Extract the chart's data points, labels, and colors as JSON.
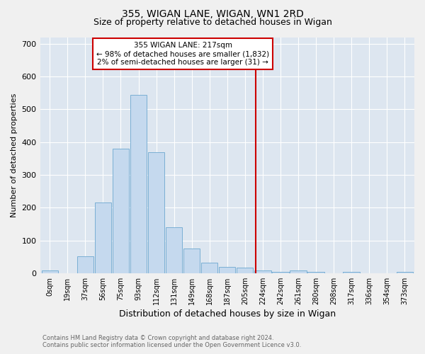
{
  "title": "355, WIGAN LANE, WIGAN, WN1 2RD",
  "subtitle": "Size of property relative to detached houses in Wigan",
  "xlabel": "Distribution of detached houses by size in Wigan",
  "ylabel": "Number of detached properties",
  "bar_labels": [
    "0sqm",
    "19sqm",
    "37sqm",
    "56sqm",
    "75sqm",
    "93sqm",
    "112sqm",
    "131sqm",
    "149sqm",
    "168sqm",
    "187sqm",
    "205sqm",
    "224sqm",
    "242sqm",
    "261sqm",
    "280sqm",
    "298sqm",
    "317sqm",
    "336sqm",
    "354sqm",
    "373sqm"
  ],
  "bar_values": [
    8,
    0,
    52,
    215,
    380,
    545,
    370,
    140,
    75,
    32,
    20,
    17,
    9,
    5,
    9,
    5,
    0,
    5,
    0,
    0,
    5
  ],
  "bar_color": "#c5d9ee",
  "bar_edge_color": "#7aafd4",
  "vline_color": "#cc0000",
  "annotation_title": "355 WIGAN LANE: 217sqm",
  "annotation_line1": "← 98% of detached houses are smaller (1,832)",
  "annotation_line2": "2% of semi-detached houses are larger (31) →",
  "annotation_box_color": "#ffffff",
  "annotation_box_edge": "#cc0000",
  "ylim": [
    0,
    720
  ],
  "yticks": [
    0,
    100,
    200,
    300,
    400,
    500,
    600,
    700
  ],
  "background_color": "#dde6f0",
  "fig_color": "#f0f0f0",
  "footer_line1": "Contains HM Land Registry data © Crown copyright and database right 2024.",
  "footer_line2": "Contains public sector information licensed under the Open Government Licence v3.0.",
  "property_sqm": 217,
  "bin_size": 18.69
}
